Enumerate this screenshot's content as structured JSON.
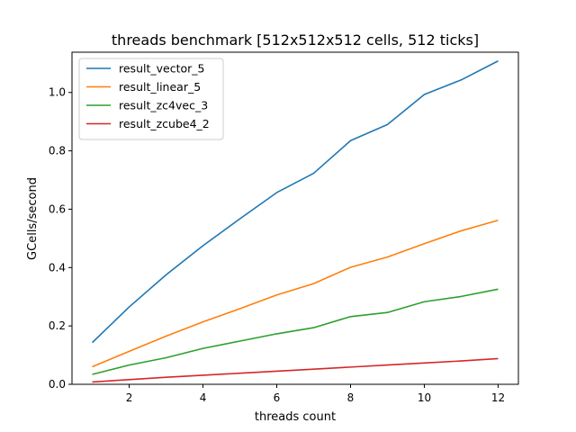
{
  "chart_data": {
    "type": "line",
    "title": "threads benchmark [512x512x512 cells, 512 ticks]",
    "xlabel": "threads count",
    "ylabel": "GCells/second",
    "x": [
      1,
      2,
      3,
      4,
      5,
      6,
      7,
      8,
      9,
      10,
      11,
      12
    ],
    "xlim": [
      0.45,
      12.55
    ],
    "ylim": [
      0,
      1.138
    ],
    "xticks": [
      "2",
      "4",
      "6",
      "8",
      "10",
      "12"
    ],
    "yticks": [
      "0.0",
      "0.2",
      "0.4",
      "0.6",
      "0.8",
      "1.0"
    ],
    "grid": false,
    "legend_position": "top-left",
    "series": [
      {
        "name": "result_vector_5",
        "color": "#1f77b4",
        "values": [
          0.143,
          0.265,
          0.375,
          0.475,
          0.567,
          0.657,
          0.723,
          0.835,
          0.89,
          0.993,
          1.043,
          1.108
        ]
      },
      {
        "name": "result_linear_5",
        "color": "#ff7f0e",
        "values": [
          0.06,
          0.113,
          0.165,
          0.214,
          0.259,
          0.306,
          0.345,
          0.401,
          0.436,
          0.482,
          0.526,
          0.562
        ]
      },
      {
        "name": "result_zc4vec_3",
        "color": "#2ca02c",
        "values": [
          0.034,
          0.066,
          0.091,
          0.123,
          0.148,
          0.173,
          0.194,
          0.232,
          0.246,
          0.283,
          0.301,
          0.326
        ]
      },
      {
        "name": "result_zcube4_2",
        "color": "#d62728",
        "values": [
          0.008,
          0.016,
          0.024,
          0.031,
          0.038,
          0.045,
          0.052,
          0.059,
          0.066,
          0.073,
          0.08,
          0.088
        ]
      }
    ]
  }
}
